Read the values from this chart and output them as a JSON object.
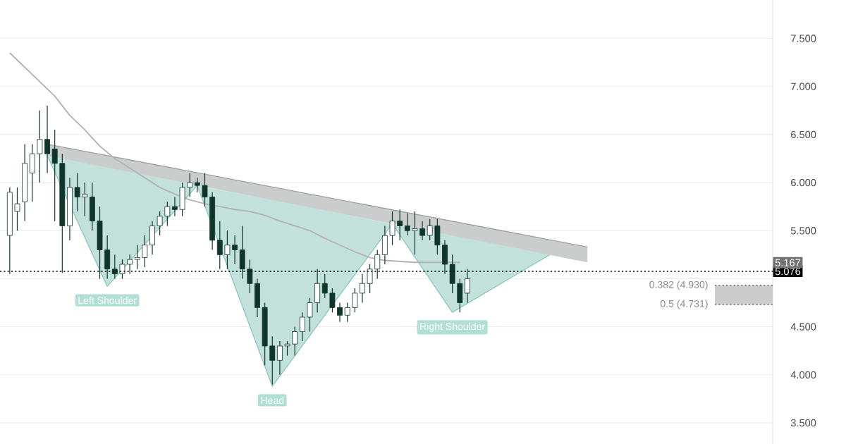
{
  "chart_data": {
    "type": "candlestick",
    "color": "#10352b",
    "categories": [
      null,
      null,
      null,
      null,
      null,
      null,
      null,
      null,
      null,
      null,
      null,
      null,
      null,
      null,
      null,
      null,
      null,
      null,
      null,
      null,
      null,
      null,
      null,
      null,
      null,
      null,
      null,
      null,
      null,
      null,
      null,
      null,
      null,
      null,
      null,
      null,
      null,
      null,
      null,
      null,
      null,
      null,
      null,
      null,
      null,
      null,
      null,
      null,
      null,
      null,
      null,
      null,
      null,
      null,
      null,
      null,
      null,
      null,
      null,
      null,
      null,
      null,
      null,
      null,
      null,
      null,
      null,
      null,
      null,
      null,
      null,
      null,
      null,
      null,
      null,
      null,
      null,
      null,
      null,
      null,
      null,
      null,
      null,
      null,
      null,
      null,
      null,
      null,
      null,
      null,
      null,
      null,
      null,
      null,
      null,
      null,
      null,
      null,
      null,
      null
    ],
    "ohlc": [
      [
        5.45,
        5.95,
        5.05,
        5.9
      ],
      [
        5.7,
        5.95,
        5.5,
        5.78
      ],
      [
        5.8,
        6.4,
        5.6,
        6.2
      ],
      [
        6.1,
        6.4,
        5.8,
        6.3
      ],
      [
        6.3,
        6.75,
        6.0,
        6.45
      ],
      [
        6.45,
        6.8,
        6.1,
        6.3
      ],
      [
        6.35,
        6.55,
        5.6,
        6.2
      ],
      [
        6.2,
        6.3,
        5.06,
        5.55
      ],
      [
        5.55,
        6.05,
        5.4,
        5.95
      ],
      [
        5.95,
        6.1,
        5.7,
        5.85
      ],
      [
        5.85,
        6.0,
        5.65,
        5.88
      ],
      [
        5.85,
        6.0,
        5.5,
        5.6
      ],
      [
        5.6,
        5.75,
        5.0,
        5.3
      ],
      [
        5.3,
        5.45,
        5.0,
        5.1
      ],
      [
        5.1,
        5.25,
        5.0,
        5.05
      ],
      [
        5.05,
        5.2,
        5.0,
        5.15
      ],
      [
        5.15,
        5.25,
        5.05,
        5.2
      ],
      [
        5.2,
        5.35,
        5.1,
        5.22
      ],
      [
        5.22,
        5.45,
        5.12,
        5.35
      ],
      [
        5.35,
        5.6,
        5.25,
        5.55
      ],
      [
        5.55,
        5.7,
        5.45,
        5.65
      ],
      [
        5.65,
        5.8,
        5.55,
        5.75
      ],
      [
        5.75,
        5.85,
        5.65,
        5.72
      ],
      [
        5.72,
        6.0,
        5.65,
        5.95
      ],
      [
        5.95,
        6.1,
        5.85,
        6.0
      ],
      [
        6.0,
        6.05,
        5.9,
        5.97
      ],
      [
        5.97,
        6.1,
        5.75,
        5.85
      ],
      [
        5.85,
        5.9,
        5.3,
        5.4
      ],
      [
        5.4,
        5.6,
        5.1,
        5.25
      ],
      [
        5.25,
        5.5,
        5.1,
        5.35
      ],
      [
        5.35,
        5.45,
        5.15,
        5.3
      ],
      [
        5.3,
        5.55,
        5.0,
        5.1
      ],
      [
        5.1,
        5.2,
        4.85,
        4.95
      ],
      [
        4.95,
        5.0,
        4.6,
        4.7
      ],
      [
        4.7,
        4.75,
        4.1,
        4.3
      ],
      [
        4.3,
        4.4,
        3.9,
        4.15
      ],
      [
        4.15,
        4.35,
        4.0,
        4.3
      ],
      [
        4.3,
        4.35,
        4.2,
        4.32
      ],
      [
        4.32,
        4.5,
        4.2,
        4.45
      ],
      [
        4.45,
        4.65,
        4.35,
        4.6
      ],
      [
        4.6,
        4.8,
        4.45,
        4.75
      ],
      [
        4.75,
        5.1,
        4.65,
        4.95
      ],
      [
        4.95,
        5.05,
        4.8,
        4.85
      ],
      [
        4.85,
        4.9,
        4.65,
        4.7
      ],
      [
        4.7,
        4.75,
        4.55,
        4.62
      ],
      [
        4.62,
        4.75,
        4.55,
        4.7
      ],
      [
        4.7,
        4.9,
        4.65,
        4.85
      ],
      [
        4.85,
        5.05,
        4.75,
        4.95
      ],
      [
        4.95,
        5.15,
        4.85,
        5.1
      ],
      [
        5.1,
        5.3,
        5.0,
        5.25
      ],
      [
        5.25,
        5.55,
        5.15,
        5.45
      ],
      [
        5.45,
        5.7,
        5.35,
        5.6
      ],
      [
        5.6,
        5.72,
        5.4,
        5.55
      ],
      [
        5.55,
        5.68,
        5.45,
        5.5
      ],
      [
        5.5,
        5.7,
        5.25,
        5.52
      ],
      [
        5.52,
        5.6,
        5.4,
        5.45
      ],
      [
        5.45,
        5.62,
        5.4,
        5.55
      ],
      [
        5.55,
        5.62,
        5.25,
        5.35
      ],
      [
        5.35,
        5.4,
        5.05,
        5.15
      ],
      [
        5.15,
        5.25,
        4.85,
        4.95
      ],
      [
        4.95,
        5.0,
        4.65,
        4.75
      ],
      [
        4.85,
        5.1,
        4.75,
        5.0
      ],
      null,
      null,
      null,
      null,
      null,
      null,
      null,
      null,
      null,
      null,
      null,
      null,
      null,
      null,
      null,
      null,
      null,
      null,
      null,
      null,
      null,
      null,
      null,
      null,
      null,
      null,
      null,
      null,
      null,
      null,
      null,
      null,
      null,
      null,
      null,
      null,
      null,
      null
    ],
    "series": [
      {
        "type": "line",
        "color": "#8fc9bb",
        "values": [
          null,
          null,
          null,
          null,
          null,
          6.28,
          null,
          null,
          null,
          null,
          null,
          null,
          null,
          4.92,
          null,
          null,
          null,
          null,
          null,
          null,
          null,
          null,
          null,
          null,
          null,
          5.97,
          null,
          null,
          null,
          null,
          null,
          null,
          null,
          null,
          null,
          3.88,
          null,
          null,
          null,
          null,
          null,
          null,
          null,
          null,
          null,
          null,
          null,
          null,
          null,
          null,
          null,
          5.57,
          null,
          null,
          null,
          null,
          null,
          null,
          null,
          4.65,
          null,
          null,
          null,
          null,
          null,
          null,
          null,
          null,
          null,
          null,
          null,
          null,
          5.25,
          null,
          null,
          null,
          null,
          null,
          null,
          null,
          null,
          null,
          null,
          null,
          null,
          null,
          null,
          null,
          null,
          null,
          null,
          null,
          null,
          null,
          null,
          null,
          null,
          null,
          null,
          null
        ],
        "lower": [
          null,
          null,
          null,
          null,
          null,
          6.28,
          null,
          null,
          null,
          null,
          null,
          null,
          null,
          4.92,
          null,
          null,
          null,
          null,
          null,
          null,
          null,
          null,
          null,
          null,
          null,
          5.97,
          null,
          null,
          null,
          null,
          null,
          null,
          null,
          null,
          null,
          3.88,
          null,
          null,
          null,
          null,
          null,
          null,
          null,
          null,
          null,
          null,
          null,
          null,
          null,
          null,
          null,
          5.57,
          null,
          null,
          null,
          null,
          null,
          null,
          null,
          4.65,
          null,
          null,
          null,
          null,
          null,
          null,
          null,
          null,
          null,
          null,
          null,
          null,
          5.25,
          null,
          null,
          null,
          null,
          null,
          null,
          null,
          null,
          null,
          null,
          null,
          null,
          null,
          null,
          null,
          null,
          null,
          null,
          null,
          null,
          null,
          null,
          null,
          null,
          null,
          null,
          null
        ],
        "upper": [
          null,
          null,
          null,
          null,
          null,
          6.28,
          null,
          null,
          null,
          null,
          null,
          null,
          null,
          6.16,
          null,
          null,
          null,
          null,
          null,
          null,
          null,
          null,
          null,
          null,
          null,
          5.97,
          null,
          null,
          null,
          null,
          null,
          null,
          null,
          null,
          null,
          5.82,
          null,
          null,
          null,
          null,
          null,
          null,
          null,
          null,
          null,
          null,
          null,
          null,
          null,
          null,
          null,
          5.57,
          null,
          null,
          null,
          null,
          null,
          null,
          null,
          5.45,
          null,
          null,
          null,
          null,
          null,
          null,
          null,
          null,
          null,
          null,
          null,
          null,
          5.25,
          null,
          null,
          null,
          null,
          null,
          null,
          null,
          null,
          null,
          null,
          null,
          null,
          null,
          null,
          null,
          null,
          null,
          null,
          null,
          null,
          null,
          null,
          null,
          null,
          null,
          null,
          null
        ]
      },
      {
        "type": "line",
        "color": "#a0a2a2",
        "values": [
          null,
          null,
          null,
          null,
          null,
          6.4,
          null,
          null,
          null,
          null,
          null,
          null,
          null,
          null,
          null,
          null,
          null,
          null,
          null,
          null,
          null,
          null,
          null,
          null,
          null,
          null,
          null,
          null,
          null,
          null,
          null,
          null,
          null,
          null,
          null,
          null,
          null,
          null,
          null,
          null,
          null,
          null,
          null,
          null,
          null,
          null,
          null,
          null,
          null,
          null,
          null,
          null,
          null,
          null,
          null,
          null,
          null,
          null,
          null,
          null,
          null,
          null,
          null,
          null,
          null,
          null,
          null,
          null,
          null,
          null,
          null,
          null,
          null,
          null,
          null,
          null,
          null,
          5.33,
          null,
          null,
          null,
          null,
          null,
          null,
          null,
          null,
          null,
          null,
          null,
          null,
          null,
          null,
          null,
          null,
          null,
          null,
          null,
          null,
          null,
          null
        ],
        "lower": [
          null,
          null,
          null,
          null,
          null,
          6.28,
          null,
          null,
          null,
          null,
          null,
          null,
          null,
          null,
          null,
          null,
          null,
          null,
          null,
          null,
          null,
          null,
          null,
          null,
          null,
          null,
          null,
          null,
          null,
          null,
          null,
          null,
          null,
          null,
          null,
          null,
          null,
          null,
          null,
          null,
          null,
          null,
          null,
          null,
          null,
          null,
          null,
          null,
          null,
          null,
          null,
          null,
          null,
          null,
          null,
          null,
          null,
          null,
          null,
          null,
          null,
          null,
          null,
          null,
          null,
          null,
          null,
          null,
          null,
          null,
          null,
          null,
          null,
          null,
          null,
          null,
          null,
          5.17,
          null,
          null,
          null,
          null,
          null,
          null,
          null,
          null,
          null,
          null,
          null,
          null,
          null,
          null,
          null,
          null,
          null,
          null,
          null,
          null,
          null,
          null
        ],
        "upper": [
          null,
          null,
          null,
          null,
          null,
          6.4,
          null,
          null,
          null,
          null,
          null,
          null,
          null,
          null,
          null,
          null,
          null,
          null,
          null,
          null,
          null,
          null,
          null,
          null,
          null,
          null,
          null,
          null,
          null,
          null,
          null,
          null,
          null,
          null,
          null,
          null,
          null,
          null,
          null,
          null,
          null,
          null,
          null,
          null,
          null,
          null,
          null,
          null,
          null,
          null,
          null,
          null,
          null,
          null,
          null,
          null,
          null,
          null,
          null,
          null,
          null,
          null,
          null,
          null,
          null,
          null,
          null,
          null,
          null,
          null,
          null,
          null,
          null,
          null,
          null,
          null,
          null,
          5.33,
          null,
          null,
          null,
          null,
          null,
          null,
          null,
          null,
          null,
          null,
          null,
          null,
          null,
          null,
          null,
          null,
          null,
          null,
          null,
          null,
          null,
          null
        ]
      },
      {
        "type": "line",
        "color": "#b3b3b3",
        "values": [
          7.35,
          null,
          7.2,
          null,
          7.05,
          null,
          6.9,
          null,
          6.7,
          null,
          6.55,
          null,
          6.38,
          null,
          6.25,
          null,
          6.15,
          null,
          6.05,
          null,
          5.95,
          null,
          5.88,
          null,
          5.82,
          null,
          5.78,
          null,
          5.75,
          null,
          5.72,
          null,
          5.7,
          null,
          5.66,
          null,
          5.6,
          null,
          5.55,
          null,
          5.5,
          null,
          5.42,
          null,
          5.35,
          null,
          5.28,
          null,
          5.22,
          null,
          5.19,
          null,
          5.18,
          null,
          5.17,
          null,
          5.17,
          null,
          5.17,
          null,
          5.17,
          null,
          null,
          null,
          null,
          null,
          null,
          null,
          null,
          null,
          null,
          null,
          null,
          null,
          null,
          null,
          null,
          null,
          null,
          null,
          null,
          null,
          null,
          null,
          null,
          null,
          null,
          null,
          null,
          null,
          null,
          null,
          null,
          null,
          null,
          null,
          null,
          null,
          null,
          null
        ]
      }
    ],
    "ylim": [
      3.28,
      7.9
    ],
    "yticks": [
      {
        "value": 3.5,
        "label": "3.500"
      },
      {
        "value": 4.0,
        "label": "4.000"
      },
      {
        "value": 4.5,
        "label": "4.500"
      },
      {
        "value": 5.0,
        "label": null
      },
      {
        "value": 5.5,
        "label": "5.500"
      },
      {
        "value": 6.0,
        "label": "6.000"
      },
      {
        "value": 6.5,
        "label": "6.500"
      },
      {
        "value": 7.0,
        "label": "7.000"
      },
      {
        "value": 7.5,
        "label": "7.500"
      }
    ],
    "grid": "y",
    "ref_lines": [
      {
        "axis": "y",
        "value": 5.076,
        "label": "5.076",
        "color": "#000000",
        "line_style": "dotted"
      }
    ],
    "bands": [
      {
        "axis": "y",
        "from": 4.731,
        "to": 4.93,
        "color": "#cccccc"
      }
    ],
    "annotations": [
      {
        "text": "Left Shoulder",
        "y": 4.92
      },
      {
        "text": "Head",
        "y": 3.88
      },
      {
        "text": "Right Shoulder",
        "y": 4.65
      },
      "0.382 (4.930)",
      "0.5 (4.731)",
      {
        "text": "5.167",
        "y": 5.167
      }
    ]
  }
}
